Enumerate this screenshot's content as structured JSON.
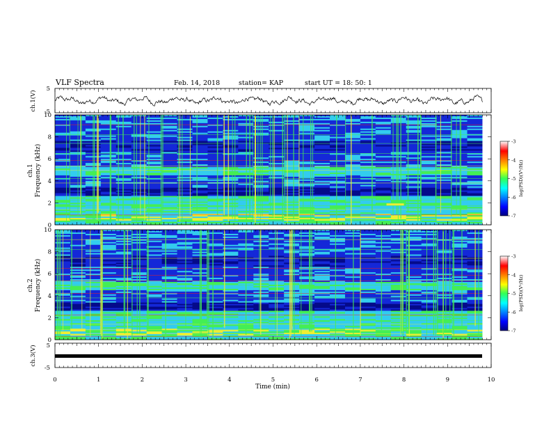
{
  "header": {
    "title": "VLF Spectra",
    "date": "Feb. 14, 2018",
    "station": "station= KAP",
    "start": "start  UT =   18: 50:  1"
  },
  "colors": {
    "spectrum_bg": "#1428d8",
    "spectrum_dark": "#050a8a",
    "cyan": "#33ccee",
    "green": "#44ee55",
    "yellow": "#eeee33",
    "red": "#ee2222"
  },
  "chart_data": [
    {
      "type": "line",
      "name": "ch1-waveform",
      "ylabel": "ch.1(V)",
      "ylim": [
        -5,
        5
      ],
      "yticks": [
        "5",
        "-5"
      ],
      "xlim": [
        0,
        10
      ],
      "description_values": "noisy voltage trace around 0 V, amplitude about 1.5 V"
    },
    {
      "type": "heatmap",
      "name": "ch1-spectrogram",
      "ylabel": "ch.1\nFrequency (kHz)",
      "ylim": [
        0,
        10
      ],
      "yticks": [
        "0",
        "2",
        "4",
        "6",
        "8",
        "10"
      ],
      "xlim": [
        0,
        10
      ],
      "colorbar": {
        "label": "log(PSD)(V²/Hz)",
        "range": [
          -7,
          -3
        ],
        "ticks": [
          "-3",
          "-4",
          "-5",
          "-6",
          "-7"
        ]
      }
    },
    {
      "type": "heatmap",
      "name": "ch2-spectrogram",
      "ylabel": "ch.2\nFrequency (kHz)",
      "ylim": [
        0,
        10
      ],
      "yticks": [
        "0",
        "2",
        "4",
        "6",
        "8",
        "10"
      ],
      "xlim": [
        0,
        10
      ],
      "colorbar": {
        "label": "log(PSD)(V²/Hz)",
        "range": [
          -7,
          -3
        ],
        "ticks": [
          "-3",
          "-4",
          "-5",
          "-6",
          "-7"
        ]
      }
    },
    {
      "type": "line",
      "name": "ch3-waveform",
      "ylabel": "ch.3(V)",
      "ylim": [
        -5,
        5
      ],
      "yticks": [
        "5",
        "-5"
      ],
      "xlim": [
        0,
        10
      ],
      "xticks": [
        "0",
        "1",
        "2",
        "3",
        "4",
        "5",
        "6",
        "7",
        "8",
        "9",
        "10"
      ],
      "xlabel": "Time (min)",
      "constant_value": 0
    }
  ],
  "labels": {
    "ch1_axis": "ch.1(V)",
    "ch1_spec_1": "ch.1",
    "ch1_spec_2": "Frequency (kHz)",
    "ch2_spec_1": "ch.2",
    "ch2_spec_2": "Frequency (kHz)",
    "ch3_axis": "ch.3(V)",
    "xlabel": "Time (min)",
    "colorbar_label": "log(PSD)(V²/Hz)"
  }
}
